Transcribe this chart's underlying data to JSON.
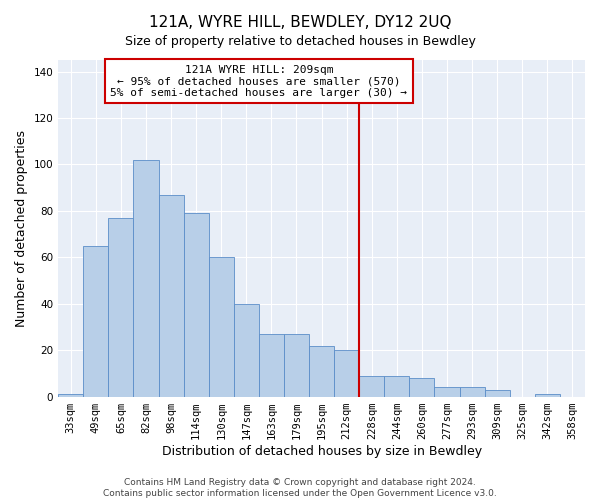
{
  "title": "121A, WYRE HILL, BEWDLEY, DY12 2UQ",
  "subtitle": "Size of property relative to detached houses in Bewdley",
  "xlabel": "Distribution of detached houses by size in Bewdley",
  "ylabel": "Number of detached properties",
  "categories": [
    "33sqm",
    "49sqm",
    "65sqm",
    "82sqm",
    "98sqm",
    "114sqm",
    "130sqm",
    "147sqm",
    "163sqm",
    "179sqm",
    "195sqm",
    "212sqm",
    "228sqm",
    "244sqm",
    "260sqm",
    "277sqm",
    "293sqm",
    "309sqm",
    "325sqm",
    "342sqm",
    "358sqm"
  ],
  "values": [
    1,
    65,
    77,
    102,
    87,
    79,
    60,
    40,
    27,
    27,
    22,
    20,
    9,
    9,
    8,
    4,
    4,
    3,
    0,
    1,
    0
  ],
  "bar_color": "#b8cfe8",
  "bar_edge_color": "#5b8dc8",
  "vline_index": 11.5,
  "vline_color": "#cc0000",
  "annotation_text": "121A WYRE HILL: 209sqm\n← 95% of detached houses are smaller (570)\n5% of semi-detached houses are larger (30) →",
  "annotation_box_color": "#ffffff",
  "annotation_box_edge_color": "#cc0000",
  "ylim": [
    0,
    145
  ],
  "yticks": [
    0,
    20,
    40,
    60,
    80,
    100,
    120,
    140
  ],
  "background_color": "#e8eef7",
  "footer": "Contains HM Land Registry data © Crown copyright and database right 2024.\nContains public sector information licensed under the Open Government Licence v3.0.",
  "title_fontsize": 11,
  "xlabel_fontsize": 9,
  "ylabel_fontsize": 9,
  "tick_fontsize": 7.5,
  "annotation_fontsize": 8,
  "footer_fontsize": 6.5
}
